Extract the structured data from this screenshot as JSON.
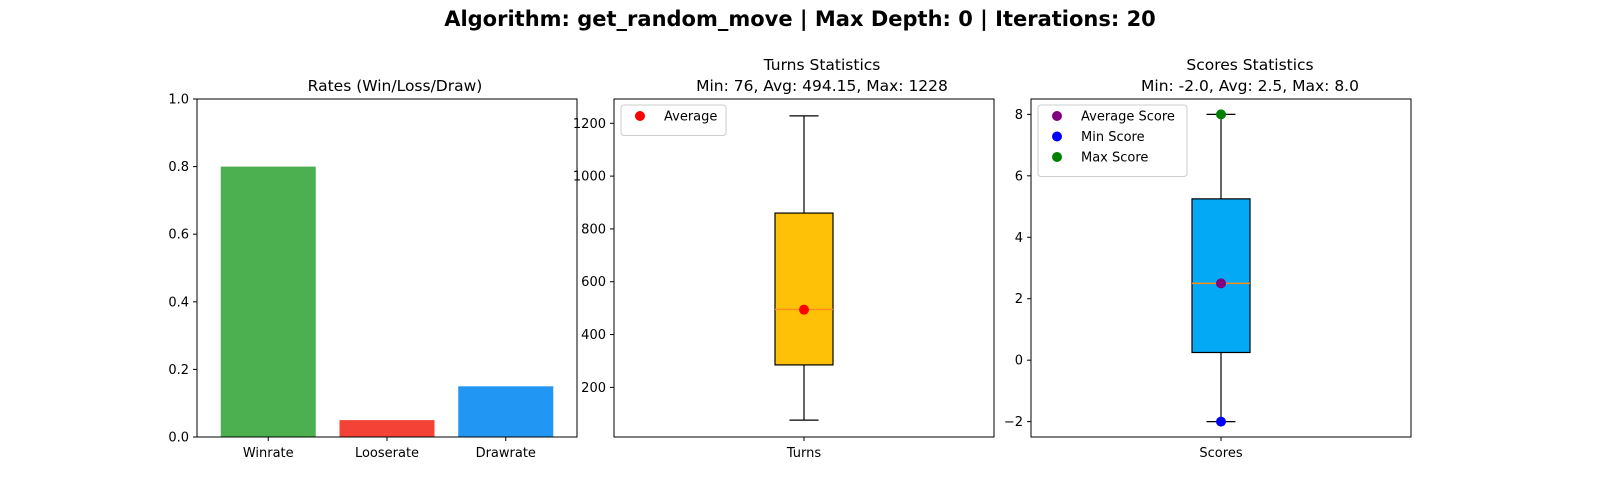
{
  "figure": {
    "suptitle": "Algorithm: get_random_move | Max Depth: 0 | Iterations: 20"
  },
  "chart_data": [
    {
      "type": "bar",
      "title": "Rates (Win/Loss/Draw)",
      "categories": [
        "Winrate",
        "Looserate",
        "Drawrate"
      ],
      "values": [
        0.8,
        0.05,
        0.15
      ],
      "colors": [
        "#4caf50",
        "#f44336",
        "#2196f3"
      ],
      "ylim": [
        0,
        1.0
      ],
      "yticks": [
        "0.0",
        "0.2",
        "0.4",
        "0.6",
        "0.8",
        "1.0"
      ],
      "xlabel": "",
      "ylabel": "",
      "grid": false
    },
    {
      "type": "box",
      "title_line1": "Turns Statistics",
      "title_line2": "Min: 76, Avg: 494.15, Max: 1228",
      "category": "Turns",
      "box": {
        "whisker_low": 76,
        "q1": 285,
        "median": 495,
        "q3": 860,
        "whisker_high": 1228
      },
      "box_color": "#ffc107",
      "median_color": "#ff8c1a",
      "markers": [
        {
          "name": "Average",
          "value": 494.15,
          "color": "#ff0000"
        }
      ],
      "ylim": [
        12,
        1292
      ],
      "yticks": [
        "200",
        "400",
        "600",
        "800",
        "1000",
        "1200"
      ],
      "legend_position": "upper-left",
      "grid": false
    },
    {
      "type": "box",
      "title_line1": "Scores Statistics",
      "title_line2": "Min: -2.0, Avg: 2.5, Max: 8.0",
      "category": "Scores",
      "box": {
        "whisker_low": -2.0,
        "q1": 0.25,
        "median": 2.5,
        "q3": 5.25,
        "whisker_high": 8.0
      },
      "box_color": "#03a9f4",
      "median_color": "#ff8c1a",
      "markers": [
        {
          "name": "Average Score",
          "value": 2.5,
          "color": "#800080"
        },
        {
          "name": "Min Score",
          "value": -2.0,
          "color": "#0000ff"
        },
        {
          "name": "Max Score",
          "value": 8.0,
          "color": "#008000"
        }
      ],
      "ylim": [
        -2.5,
        8.5
      ],
      "yticks": [
        "−2",
        "0",
        "2",
        "4",
        "6",
        "8"
      ],
      "legend_position": "upper-left",
      "grid": false
    }
  ]
}
